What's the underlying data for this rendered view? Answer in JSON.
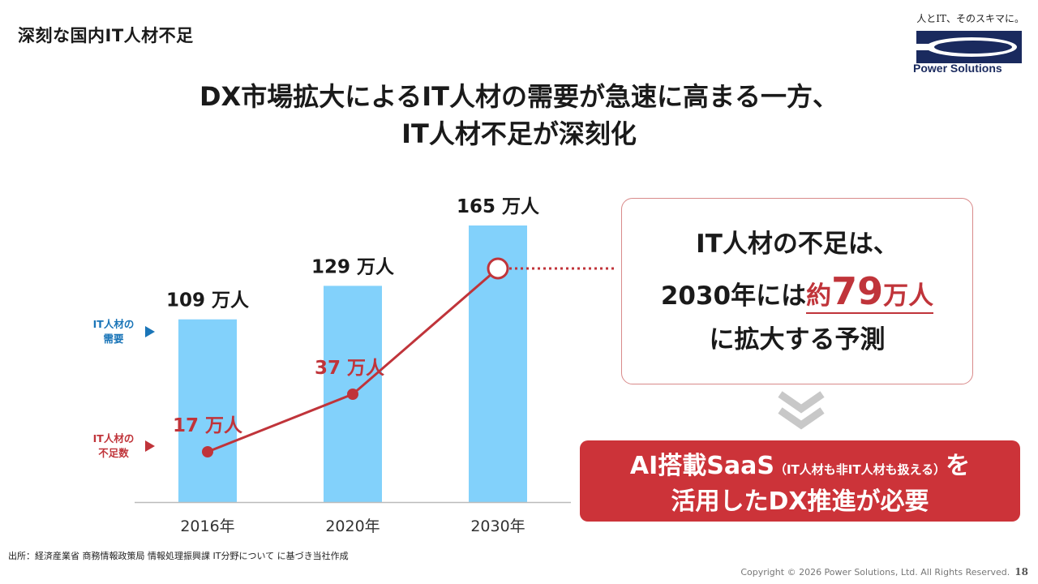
{
  "header": {
    "section_title": "深刻な国内IT人材不足",
    "headline_line1": "DX市場拡大によるIT人材の需要が急速に高まる一方、",
    "headline_line2": "IT人材不足が深刻化"
  },
  "logo": {
    "tagline": "人とIT、そのスキマに。",
    "name": "Power Solutions",
    "brand_color": "#1a2a5e"
  },
  "chart_data": {
    "type": "bar",
    "categories": [
      "2016年",
      "2020年",
      "2030年"
    ],
    "series": [
      {
        "name": "IT人材の需要",
        "kind": "bar",
        "values": [
          109,
          129,
          165
        ],
        "unit": "万人",
        "color": "#82d1fb"
      },
      {
        "name": "IT人材の不足数",
        "kind": "line",
        "values": [
          17,
          37,
          79
        ],
        "unit": "万人",
        "color": "#c0343a"
      }
    ],
    "bar_labels": [
      "109 万人",
      "129 万人",
      "165 万人"
    ],
    "line_labels": [
      "17 万人",
      "37 万人"
    ],
    "legend": [
      {
        "line1": "IT人材の",
        "line2": "需要",
        "color": "#1a75b8"
      },
      {
        "line1": "IT人材の",
        "line2": "不足数",
        "color": "#c0343a"
      }
    ],
    "ylim": [
      0,
      175
    ],
    "title": "",
    "xlabel": "",
    "ylabel": ""
  },
  "callout": {
    "line1": "IT人材の不足は、",
    "line2_prefix": "2030年には",
    "line2_approx": "約",
    "line2_number": "79",
    "line2_unit": "万人",
    "line3": "に拡大する予測"
  },
  "cta": {
    "line1_main": "AI搭載SaaS",
    "line1_note": "（IT人材も非IT人材も扱える）",
    "line1_end": "を",
    "line2": "活用したDX推進が必要",
    "color": "#cc3339"
  },
  "footer": {
    "source": "出所：経済産業省 商務情報政策局 情報処理振興課 IT分野について に基づき当社作成",
    "copyright": "Copyright © 2026 Power Solutions, Ltd. All Rights Reserved.",
    "page_number": "18"
  }
}
